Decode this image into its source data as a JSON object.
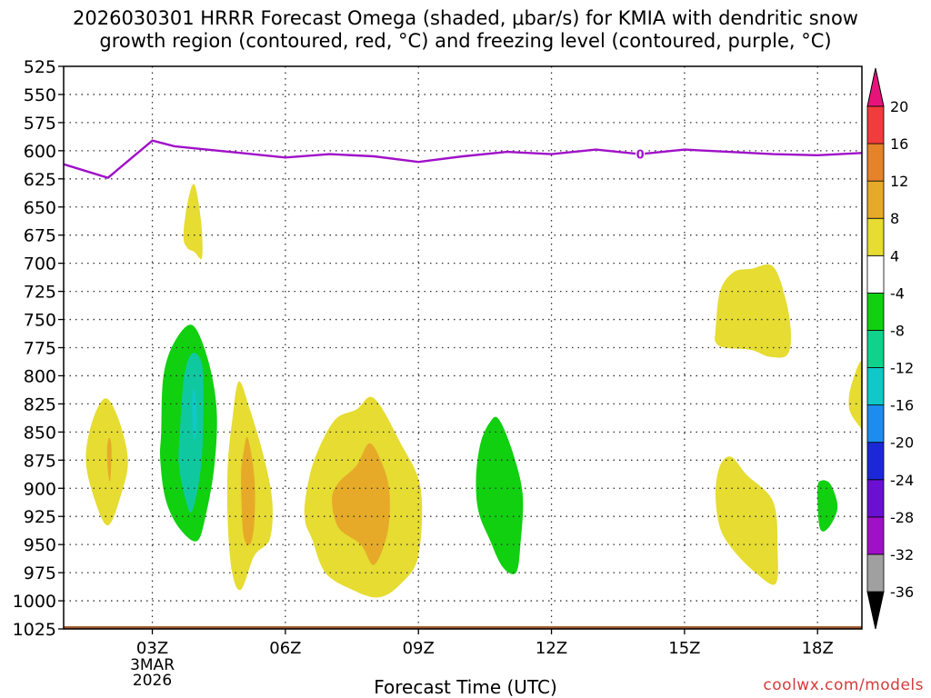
{
  "chart_data": {
    "type": "contour",
    "title_line1": "2026030301 HRRR Forecast Omega (shaded, μbar/s) for KMIA with dendritic snow",
    "title_line2": "growth region (contoured, red, °C) and freezing level (contoured, purple, °C)",
    "xlabel": "Forecast Time (UTC)",
    "ylabel": "",
    "credit": "coolwx.com/models",
    "xlim": [
      1,
      19
    ],
    "ylim": [
      1025,
      525
    ],
    "y_ticks": [
      525,
      550,
      575,
      600,
      625,
      650,
      675,
      700,
      725,
      750,
      775,
      800,
      825,
      850,
      875,
      900,
      925,
      950,
      975,
      1000,
      1025
    ],
    "x_ticks": [
      {
        "hour": 3,
        "label": "03Z"
      },
      {
        "hour": 6,
        "label": "06Z"
      },
      {
        "hour": 9,
        "label": "09Z"
      },
      {
        "hour": 12,
        "label": "12Z"
      },
      {
        "hour": 15,
        "label": "15Z"
      },
      {
        "hour": 18,
        "label": "18Z"
      }
    ],
    "date_label": [
      "3MAR",
      "2026"
    ],
    "grid": true,
    "colorbar": {
      "bands": [
        {
          "value": "-36",
          "color": "#000000"
        },
        {
          "value": "-32",
          "color": "#a0a0a0"
        },
        {
          "value": "-28",
          "color": "#a010c8"
        },
        {
          "value": "-24",
          "color": "#6a10d2"
        },
        {
          "value": "-20",
          "color": "#1c28d8"
        },
        {
          "value": "-16",
          "color": "#1c8cf0"
        },
        {
          "value": "-12",
          "color": "#10c8c8"
        },
        {
          "value": "-8",
          "color": "#10d28c"
        },
        {
          "value": "-4",
          "color": "#10d010"
        },
        {
          "value": "4",
          "color": "#ffffff"
        },
        {
          "value": "8",
          "color": "#e6dc32"
        },
        {
          "value": "12",
          "color": "#e6aa28"
        },
        {
          "value": "16",
          "color": "#e68228"
        },
        {
          "value": "20",
          "color": "#f03c3c"
        },
        {
          "value": "",
          "color": "#e6147a"
        }
      ]
    },
    "freezing_level": {
      "color": "#a010c8",
      "label": "0",
      "label_at": [
        14,
        603
      ],
      "points": [
        [
          1,
          612
        ],
        [
          2,
          624
        ],
        [
          3,
          591
        ],
        [
          3.5,
          596
        ],
        [
          4,
          598
        ],
        [
          5,
          602
        ],
        [
          6,
          606
        ],
        [
          7,
          603
        ],
        [
          8,
          605
        ],
        [
          9,
          610
        ],
        [
          10,
          605
        ],
        [
          11,
          601
        ],
        [
          12,
          603
        ],
        [
          13,
          599
        ],
        [
          14,
          603
        ],
        [
          15,
          599
        ],
        [
          16,
          601
        ],
        [
          17,
          603
        ],
        [
          18,
          604
        ],
        [
          19,
          602
        ]
      ]
    },
    "surface_pressure": {
      "color": "#a05a2c",
      "values_hpa": [
        1021,
        1022,
        1023
      ]
    },
    "omega_regions": [
      {
        "name": "yellow-1",
        "color": "#e6dc32",
        "points": [
          [
            1.5,
            875
          ],
          [
            1.65,
            840
          ],
          [
            1.95,
            820
          ],
          [
            2.25,
            840
          ],
          [
            2.45,
            875
          ],
          [
            2.3,
            905
          ],
          [
            2.0,
            933
          ],
          [
            1.7,
            910
          ]
        ]
      },
      {
        "name": "orange-1",
        "color": "#e6aa28",
        "points": [
          [
            1.98,
            865
          ],
          [
            2.03,
            855
          ],
          [
            2.08,
            865
          ],
          [
            2.05,
            893
          ],
          [
            2.0,
            885
          ]
        ]
      },
      {
        "name": "yellow-2",
        "color": "#e6dc32",
        "points": [
          [
            3.7,
            675
          ],
          [
            3.8,
            645
          ],
          [
            3.95,
            630
          ],
          [
            4.1,
            663
          ],
          [
            4.12,
            695
          ],
          [
            3.95,
            690
          ],
          [
            3.78,
            686
          ]
        ]
      },
      {
        "name": "green-1",
        "color": "#10d010",
        "points": [
          [
            3.2,
            850
          ],
          [
            3.25,
            800
          ],
          [
            3.5,
            770
          ],
          [
            3.9,
            755
          ],
          [
            4.25,
            785
          ],
          [
            4.45,
            830
          ],
          [
            4.4,
            880
          ],
          [
            4.2,
            925
          ],
          [
            4.0,
            947
          ],
          [
            3.6,
            935
          ],
          [
            3.3,
            910
          ],
          [
            3.18,
            875
          ]
        ]
      },
      {
        "name": "teal-1",
        "color": "#10c8a0",
        "points": [
          [
            3.62,
            850
          ],
          [
            3.72,
            800
          ],
          [
            3.9,
            780
          ],
          [
            4.12,
            790
          ],
          [
            4.15,
            830
          ],
          [
            4.1,
            880
          ],
          [
            3.9,
            920
          ],
          [
            3.75,
            910
          ],
          [
            3.6,
            880
          ]
        ]
      },
      {
        "name": "cyan-1",
        "color": "#10c8c8",
        "points": [
          [
            3.9,
            820
          ],
          [
            3.95,
            812
          ],
          [
            4.0,
            830
          ],
          [
            3.98,
            855
          ],
          [
            3.92,
            850
          ]
        ]
      },
      {
        "name": "yellow-3",
        "color": "#e6dc32",
        "points": [
          [
            4.7,
            880
          ],
          [
            4.8,
            840
          ],
          [
            4.95,
            805
          ],
          [
            5.2,
            830
          ],
          [
            5.5,
            870
          ],
          [
            5.7,
            910
          ],
          [
            5.65,
            945
          ],
          [
            5.3,
            960
          ],
          [
            5.0,
            990
          ],
          [
            4.8,
            975
          ],
          [
            4.7,
            930
          ]
        ]
      },
      {
        "name": "orange-2",
        "color": "#e6aa28",
        "points": [
          [
            5.0,
            890
          ],
          [
            5.05,
            870
          ],
          [
            5.15,
            855
          ],
          [
            5.3,
            890
          ],
          [
            5.3,
            930
          ],
          [
            5.2,
            950
          ],
          [
            5.05,
            940
          ]
        ]
      },
      {
        "name": "yellow-4",
        "color": "#e6dc32",
        "points": [
          [
            6.45,
            910
          ],
          [
            6.65,
            875
          ],
          [
            7.1,
            840
          ],
          [
            7.6,
            830
          ],
          [
            8.0,
            820
          ],
          [
            8.6,
            860
          ],
          [
            9.05,
            900
          ],
          [
            9.0,
            960
          ],
          [
            8.6,
            985
          ],
          [
            8.1,
            997
          ],
          [
            7.5,
            990
          ],
          [
            6.9,
            975
          ],
          [
            6.6,
            945
          ],
          [
            6.45,
            930
          ]
        ]
      },
      {
        "name": "orange-3",
        "color": "#e6aa28",
        "points": [
          [
            7.05,
            910
          ],
          [
            7.2,
            895
          ],
          [
            7.6,
            880
          ],
          [
            7.9,
            860
          ],
          [
            8.2,
            880
          ],
          [
            8.35,
            905
          ],
          [
            8.3,
            940
          ],
          [
            8.0,
            968
          ],
          [
            7.7,
            950
          ],
          [
            7.2,
            935
          ]
        ]
      },
      {
        "name": "green-2",
        "color": "#10d010",
        "points": [
          [
            10.3,
            890
          ],
          [
            10.4,
            860
          ],
          [
            10.6,
            842
          ],
          [
            10.8,
            838
          ],
          [
            11.1,
            865
          ],
          [
            11.35,
            905
          ],
          [
            11.3,
            950
          ],
          [
            11.2,
            975
          ],
          [
            10.9,
            970
          ],
          [
            10.6,
            945
          ],
          [
            10.35,
            920
          ]
        ]
      },
      {
        "name": "yellow-5",
        "color": "#e6dc32",
        "points": [
          [
            15.7,
            760
          ],
          [
            15.8,
            725
          ],
          [
            16.1,
            708
          ],
          [
            16.5,
            705
          ],
          [
            17.0,
            703
          ],
          [
            17.3,
            735
          ],
          [
            17.4,
            765
          ],
          [
            17.3,
            782
          ],
          [
            16.9,
            783
          ],
          [
            16.5,
            777
          ],
          [
            15.9,
            775
          ],
          [
            15.7,
            770
          ]
        ]
      },
      {
        "name": "yellow-6",
        "color": "#e6dc32",
        "points": [
          [
            15.7,
            905
          ],
          [
            15.8,
            880
          ],
          [
            16.05,
            872
          ],
          [
            16.4,
            888
          ],
          [
            17.0,
            912
          ],
          [
            17.1,
            955
          ],
          [
            17.05,
            985
          ],
          [
            16.6,
            975
          ],
          [
            16.1,
            955
          ],
          [
            15.8,
            935
          ]
        ]
      },
      {
        "name": "green-3",
        "color": "#10d010",
        "points": [
          [
            18.0,
            900
          ],
          [
            18.1,
            893
          ],
          [
            18.3,
            897
          ],
          [
            18.45,
            917
          ],
          [
            18.25,
            935
          ],
          [
            18.05,
            935
          ]
        ]
      },
      {
        "name": "yellow-7",
        "color": "#e6dc32",
        "points": [
          [
            19.0,
            788
          ],
          [
            18.75,
            810
          ],
          [
            18.72,
            830
          ],
          [
            18.95,
            845
          ],
          [
            19.0,
            843
          ]
        ]
      }
    ]
  }
}
